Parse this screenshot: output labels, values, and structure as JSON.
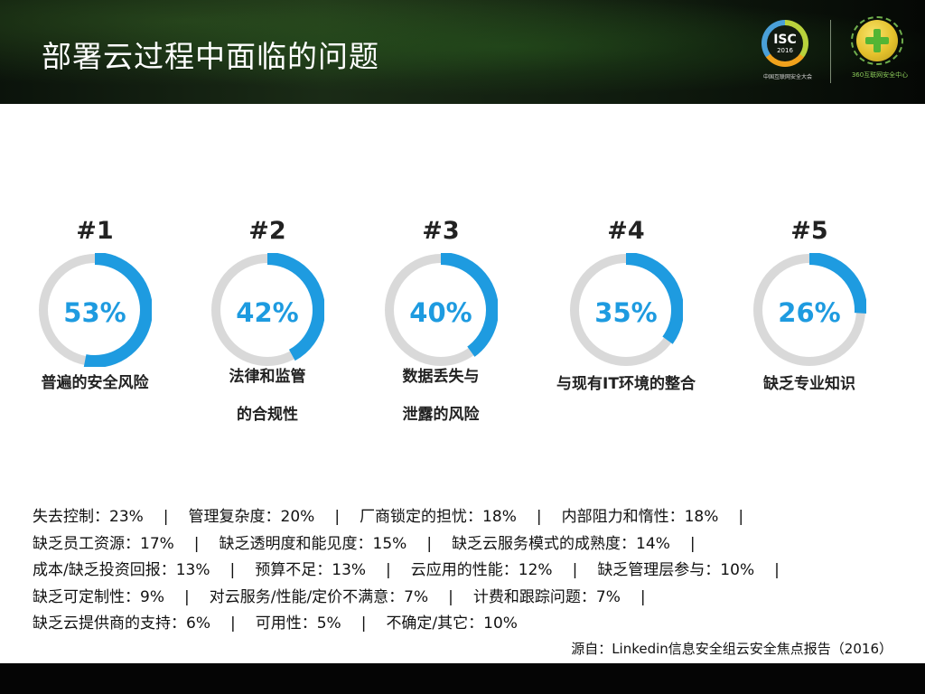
{
  "header": {
    "title": "部署云过程中面临的问题",
    "logo_isc": {
      "text": "ISC",
      "year": "2016",
      "caption": "中国互联网安全大会"
    },
    "logo_360": {
      "caption": "360互联网安全中心"
    }
  },
  "colors": {
    "accent": "#1e9be0",
    "track": "#d9d9d9",
    "text": "#222222"
  },
  "metrics": [
    {
      "rank": "#1",
      "percent": "53%",
      "value": 53,
      "label_lines": [
        "普遍的安全风险"
      ]
    },
    {
      "rank": "#2",
      "percent": "42%",
      "value": 42,
      "label_lines": [
        "法律和监管",
        "的合规性"
      ]
    },
    {
      "rank": "#3",
      "percent": "40%",
      "value": 40,
      "label_lines": [
        "数据丢失与",
        "泄露的风险"
      ]
    },
    {
      "rank": "#4",
      "percent": "35%",
      "value": 35,
      "label_lines": [
        "与现有IT环境的整合"
      ]
    },
    {
      "rank": "#5",
      "percent": "26%",
      "value": 26,
      "label_lines": [
        "缺乏专业知识"
      ]
    }
  ],
  "other_issues": {
    "rows": [
      [
        "失去控制：23%",
        "管理复杂度：20%",
        "厂商锁定的担忧：18%",
        "内部阻力和惰性：18%"
      ],
      [
        "缺乏员工资源：17%",
        "缺乏透明度和能见度：15%",
        "缺乏云服务模式的成熟度：14%"
      ],
      [
        "成本/缺乏投资回报：13%",
        "预算不足：13%",
        "云应用的性能：12%",
        "缺乏管理层参与：10%"
      ],
      [
        "缺乏可定制性：9%",
        "对云服务/性能/定价不满意：7%",
        "计费和跟踪问题：7%"
      ],
      [
        "缺乏云提供商的支持：6%",
        "可用性：5%",
        "不确定/其它：10%"
      ]
    ],
    "trailing_separator": [
      true,
      true,
      true,
      true,
      false
    ],
    "separator": "|"
  },
  "source": "源自：Linkedin信息安全组云安全焦点报告（2016）"
}
